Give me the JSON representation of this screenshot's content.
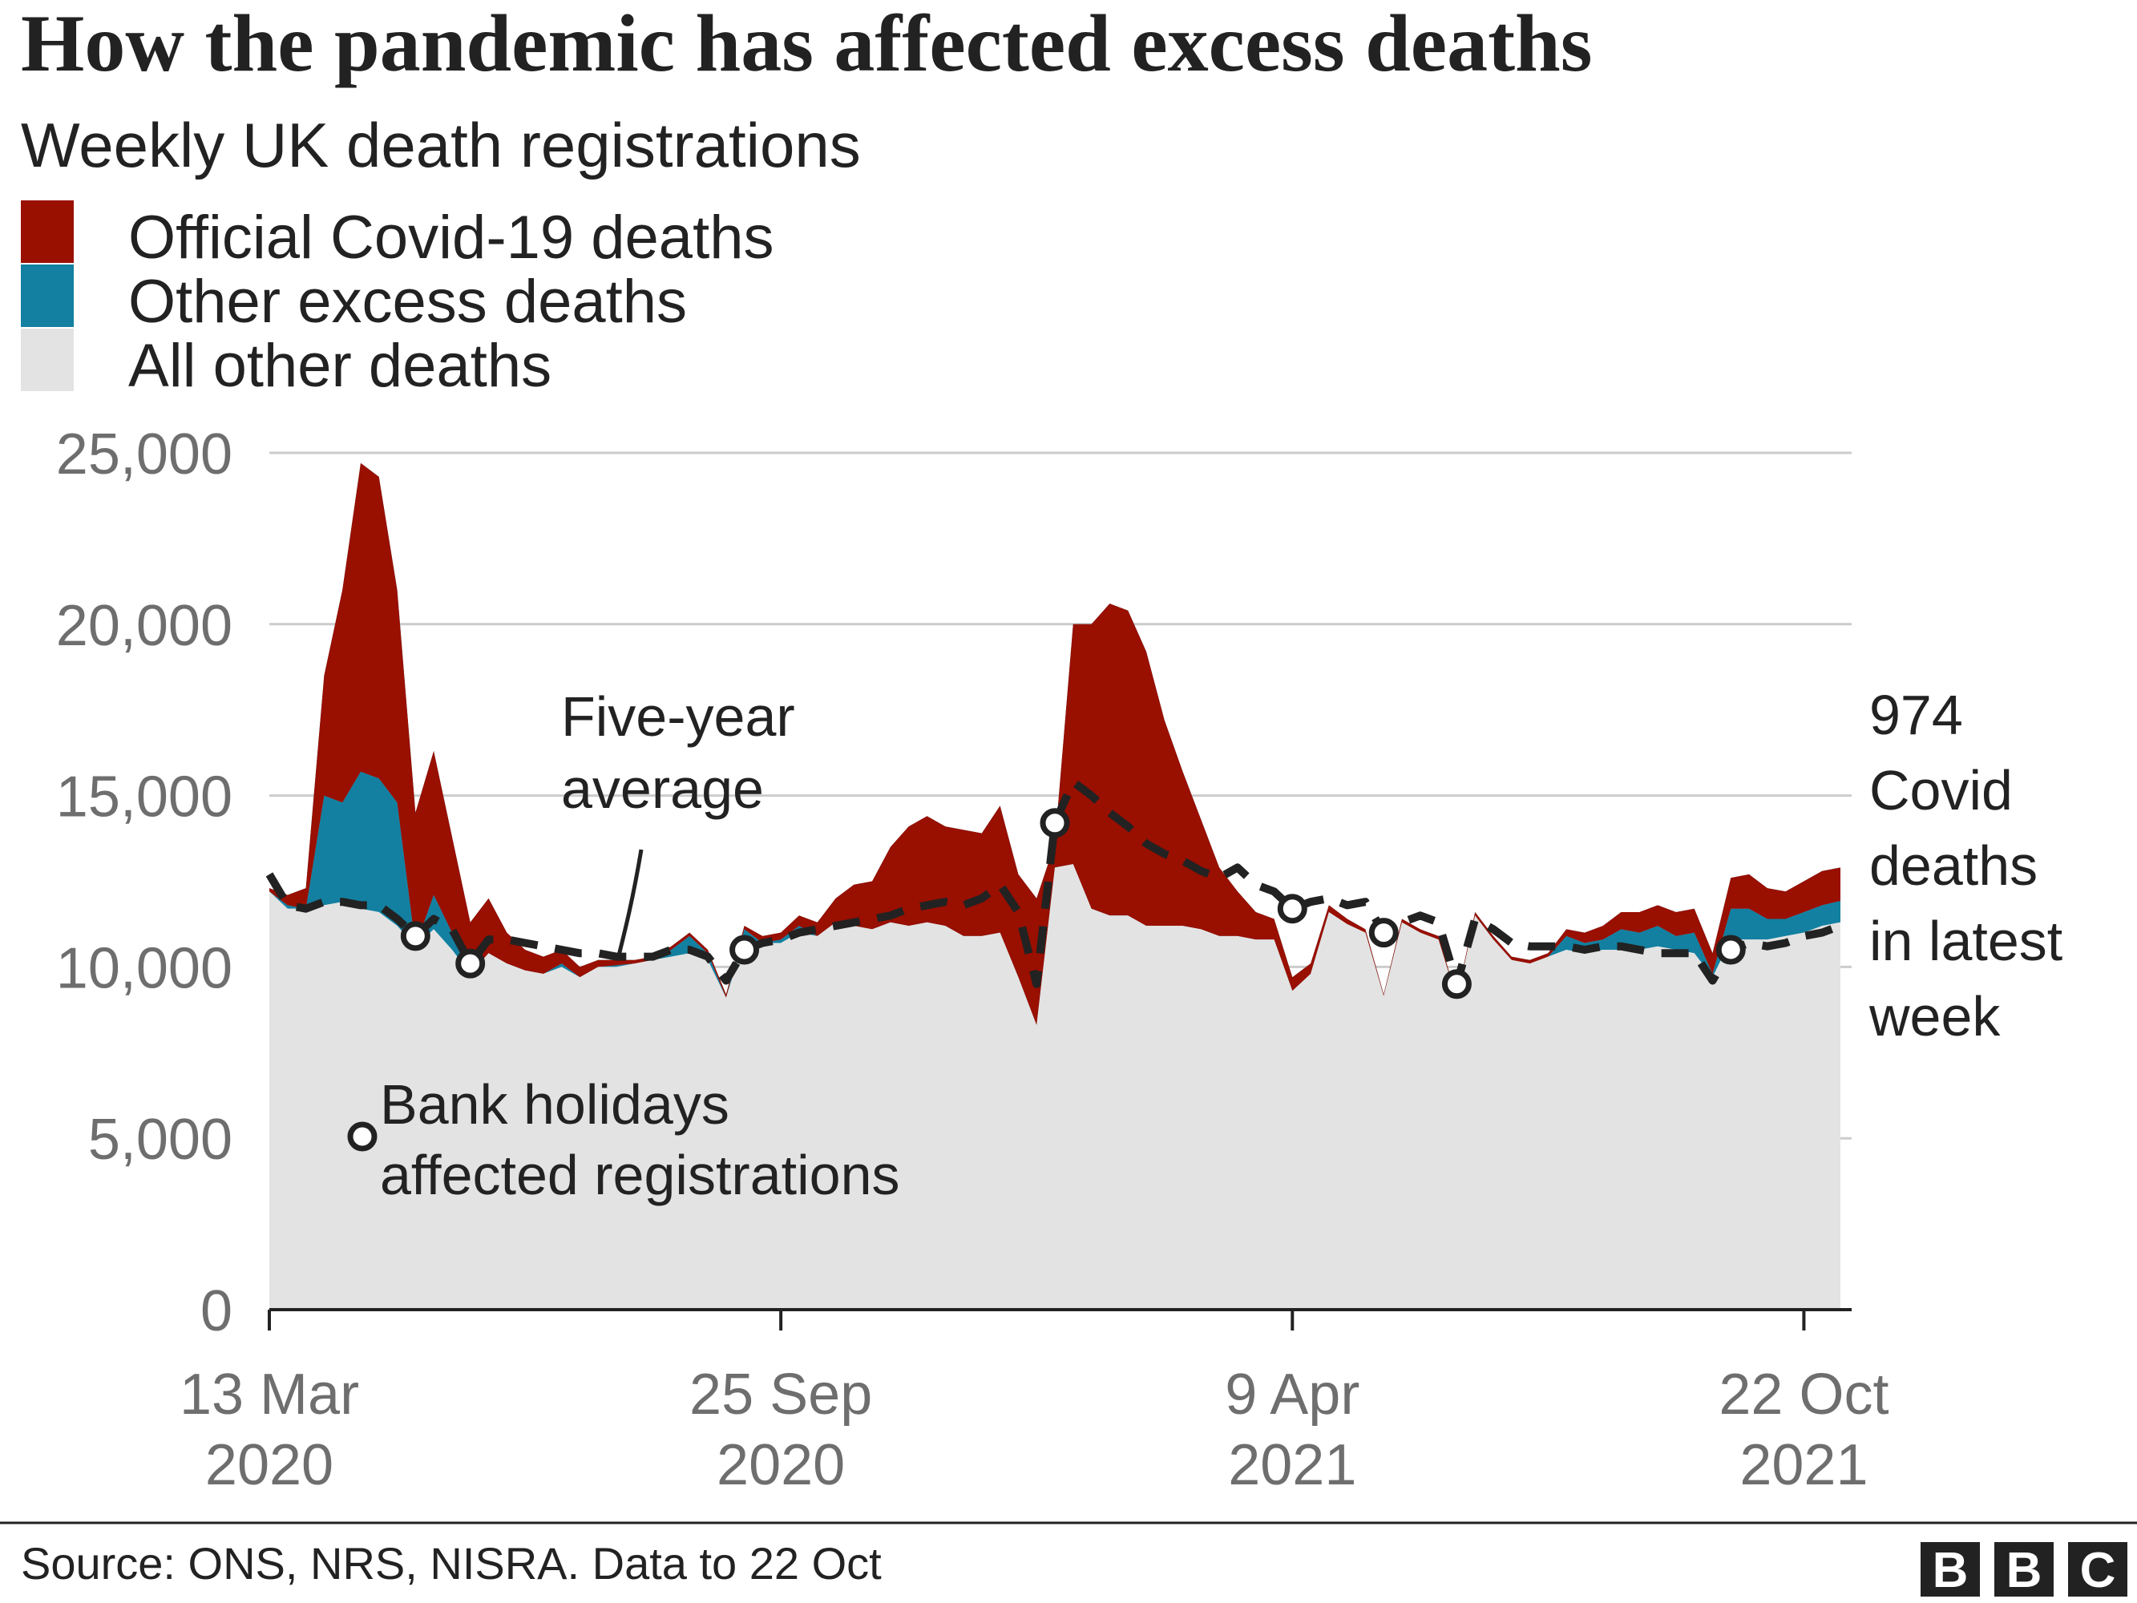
{
  "title": "How the pandemic has affected excess deaths",
  "subtitle": "Weekly UK death registrations",
  "legend": [
    {
      "label": "Official Covid-19 deaths",
      "color": "#990f00"
    },
    {
      "label": "Other excess deaths",
      "color": "#1380a1"
    },
    {
      "label": "All other deaths",
      "color": "#e3e3e3"
    }
  ],
  "annotations": {
    "five_year_line1": "Five-year",
    "five_year_line2": "average",
    "bank_line1": "Bank holidays",
    "bank_line2": "affected registrations",
    "latest_line1": "974",
    "latest_line2": "Covid",
    "latest_line3": "deaths",
    "latest_line4": "in latest",
    "latest_line5": "week"
  },
  "source": "Source: ONS, NRS, NISRA. Data to 22 Oct",
  "logo_letters": [
    "B",
    "B",
    "C"
  ],
  "chart_data": {
    "type": "area",
    "stacked": true,
    "ylim": [
      0,
      25000
    ],
    "y_ticks": [
      "0",
      "5,000",
      "10,000",
      "15,000",
      "20,000",
      "25,000"
    ],
    "y_tick_values": [
      0,
      5000,
      10000,
      15000,
      20000,
      25000
    ],
    "x_ticks": [
      {
        "line1": "13 Mar",
        "line2": "2020",
        "week": 0
      },
      {
        "line1": "25 Sep",
        "line2": "2020",
        "week": 28
      },
      {
        "line1": "9 Apr",
        "line2": "2021",
        "week": 56
      },
      {
        "line1": "22 Oct",
        "line2": "2021",
        "week": 84
      }
    ],
    "grid": true,
    "legend_position": "top-left",
    "series": [
      {
        "name": "Official Covid-19 deaths",
        "color": "#990f00"
      },
      {
        "name": "Other excess deaths",
        "color": "#1380a1"
      },
      {
        "name": "All other deaths",
        "color": "#e3e3e3"
      },
      {
        "name": "Five-year average",
        "style": "dashed",
        "color": "#222222"
      }
    ],
    "weeks": [
      {
        "total": 12300,
        "covid": 100,
        "avg": 12700,
        "other": 12200
      },
      {
        "total": 12100,
        "covid": 300,
        "avg": 11800,
        "other": 11700
      },
      {
        "total": 12300,
        "covid": 600,
        "avg": 11700,
        "other": 11700
      },
      {
        "total": 18500,
        "covid": 3500,
        "avg": 11900,
        "other": 11800
      },
      {
        "total": 21000,
        "covid": 6200,
        "avg": 11900,
        "other": 11900
      },
      {
        "total": 24700,
        "covid": 9000,
        "avg": 11800,
        "other": 11700
      },
      {
        "total": 24300,
        "covid": 8800,
        "avg": 11800,
        "other": 11600
      },
      {
        "total": 21000,
        "covid": 6200,
        "avg": 11400,
        "other": 11200
      },
      {
        "total": 14500,
        "covid": 3900,
        "avg": 10900,
        "other": 10600
      },
      {
        "total": 16300,
        "covid": 4200,
        "avg": 11400,
        "other": 11100
      },
      {
        "total": 13800,
        "covid": 2800,
        "avg": 11100,
        "other": 10500
      },
      {
        "total": 11300,
        "covid": 1500,
        "avg": 10100,
        "other": 9800
      },
      {
        "total": 12000,
        "covid": 1600,
        "avg": 10800,
        "other": 10400
      },
      {
        "total": 11000,
        "covid": 900,
        "avg": 10800,
        "other": 10100
      },
      {
        "total": 10500,
        "covid": 600,
        "avg": 10700,
        "other": 9900
      },
      {
        "total": 10300,
        "covid": 500,
        "avg": 10600,
        "other": 9800
      },
      {
        "total": 10500,
        "covid": 400,
        "avg": 10500,
        "other": 10000
      },
      {
        "total": 10000,
        "covid": 300,
        "avg": 10400,
        "other": 9700
      },
      {
        "total": 10200,
        "covid": 200,
        "avg": 10400,
        "other": 10000
      },
      {
        "total": 10200,
        "covid": 150,
        "avg": 10300,
        "other": 10000
      },
      {
        "total": 10200,
        "covid": 100,
        "avg": 10300,
        "other": 10100
      },
      {
        "total": 10300,
        "covid": 100,
        "avg": 10300,
        "other": 10200
      },
      {
        "total": 10600,
        "covid": 100,
        "avg": 10500,
        "other": 10300
      },
      {
        "total": 11000,
        "covid": 100,
        "avg": 10500,
        "other": 10400
      },
      {
        "total": 10500,
        "covid": 100,
        "avg": 10300,
        "other": 10200
      },
      {
        "total": 9200,
        "covid": 100,
        "avg": 9600,
        "other": 9100
      },
      {
        "total": 11200,
        "covid": 100,
        "avg": 10500,
        "other": 10800
      },
      {
        "total": 10900,
        "covid": 200,
        "avg": 10700,
        "other": 10700
      },
      {
        "total": 11000,
        "covid": 200,
        "avg": 10800,
        "other": 10700
      },
      {
        "total": 11500,
        "covid": 300,
        "avg": 11000,
        "other": 11000
      },
      {
        "total": 11300,
        "covid": 400,
        "avg": 11100,
        "other": 10900
      },
      {
        "total": 12000,
        "covid": 700,
        "avg": 11200,
        "other": 11300
      },
      {
        "total": 12400,
        "covid": 1200,
        "avg": 11300,
        "other": 11200
      },
      {
        "total": 12500,
        "covid": 1400,
        "avg": 11400,
        "other": 11100
      },
      {
        "total": 13500,
        "covid": 2200,
        "avg": 11500,
        "other": 11300
      },
      {
        "total": 14100,
        "covid": 2900,
        "avg": 11700,
        "other": 11200
      },
      {
        "total": 14400,
        "covid": 3100,
        "avg": 11800,
        "other": 11300
      },
      {
        "total": 14100,
        "covid": 2900,
        "avg": 11900,
        "other": 11200
      },
      {
        "total": 14000,
        "covid": 3100,
        "avg": 11800,
        "other": 10900
      },
      {
        "total": 13900,
        "covid": 3000,
        "avg": 12000,
        "other": 10900
      },
      {
        "total": 14700,
        "covid": 3700,
        "avg": 12400,
        "other": 11000
      },
      {
        "total": 12700,
        "covid": 3000,
        "avg": 11600,
        "other": 9700
      },
      {
        "total": 12000,
        "covid": 3700,
        "avg": 9500,
        "other": 8300
      },
      {
        "total": 13600,
        "covid": 700,
        "avg": 14200,
        "other": 12900
      },
      {
        "total": 20000,
        "covid": 7000,
        "avg": 15400,
        "other": 13000
      },
      {
        "total": 20000,
        "covid": 8300,
        "avg": 15000,
        "other": 11700
      },
      {
        "total": 20600,
        "covid": 9100,
        "avg": 14500,
        "other": 11500
      },
      {
        "total": 20400,
        "covid": 8900,
        "avg": 14100,
        "other": 11500
      },
      {
        "total": 19200,
        "covid": 8000,
        "avg": 13600,
        "other": 11200
      },
      {
        "total": 17200,
        "covid": 6000,
        "avg": 13300,
        "other": 11200
      },
      {
        "total": 15700,
        "covid": 4500,
        "avg": 13100,
        "other": 11200
      },
      {
        "total": 14300,
        "covid": 3200,
        "avg": 12800,
        "other": 11100
      },
      {
        "total": 12900,
        "covid": 2000,
        "avg": 12600,
        "other": 10900
      },
      {
        "total": 12200,
        "covid": 1300,
        "avg": 12900,
        "other": 10900
      },
      {
        "total": 11600,
        "covid": 800,
        "avg": 12400,
        "other": 10800
      },
      {
        "total": 11400,
        "covid": 600,
        "avg": 12200,
        "other": 10800
      },
      {
        "total": 9700,
        "covid": 400,
        "avg": 11700,
        "other": 9300
      },
      {
        "total": 10100,
        "covid": 300,
        "avg": 11900,
        "other": 9800
      },
      {
        "total": 11800,
        "covid": 200,
        "avg": 12000,
        "other": 11600
      },
      {
        "total": 11400,
        "covid": 150,
        "avg": 11800,
        "other": 11250
      },
      {
        "total": 11100,
        "covid": 100,
        "avg": 11900,
        "other": 11000
      },
      {
        "total": 9200,
        "covid": 50,
        "avg": 11000,
        "other": 9150
      },
      {
        "total": 11400,
        "covid": 100,
        "avg": 11300,
        "other": 11300
      },
      {
        "total": 11100,
        "covid": 100,
        "avg": 11500,
        "other": 11000
      },
      {
        "total": 10900,
        "covid": 100,
        "avg": 11300,
        "other": 10800
      },
      {
        "total": 9100,
        "covid": 50,
        "avg": 9500,
        "other": 9050
      },
      {
        "total": 11600,
        "covid": 100,
        "avg": 11400,
        "other": 11500
      },
      {
        "total": 10900,
        "covid": 100,
        "avg": 11100,
        "other": 10800
      },
      {
        "total": 10300,
        "covid": 100,
        "avg": 10700,
        "other": 10200
      },
      {
        "total": 10200,
        "covid": 100,
        "avg": 10600,
        "other": 10100
      },
      {
        "total": 10400,
        "covid": 100,
        "avg": 10600,
        "other": 10300
      },
      {
        "total": 11100,
        "covid": 200,
        "avg": 10600,
        "other": 10500
      },
      {
        "total": 11000,
        "covid": 300,
        "avg": 10500,
        "other": 10400
      },
      {
        "total": 11200,
        "covid": 400,
        "avg": 10600,
        "other": 10500
      },
      {
        "total": 11600,
        "covid": 500,
        "avg": 10600,
        "other": 10500
      },
      {
        "total": 11600,
        "covid": 600,
        "avg": 10500,
        "other": 10500
      },
      {
        "total": 11800,
        "covid": 600,
        "avg": 10400,
        "other": 10600
      },
      {
        "total": 11600,
        "covid": 700,
        "avg": 10400,
        "other": 10500
      },
      {
        "total": 11700,
        "covid": 700,
        "avg": 10400,
        "other": 10400
      },
      {
        "total": 10400,
        "covid": 600,
        "avg": 9600,
        "other": 9700
      },
      {
        "total": 12600,
        "covid": 900,
        "avg": 10500,
        "other": 10800
      },
      {
        "total": 12700,
        "covid": 1000,
        "avg": 10700,
        "other": 10800
      },
      {
        "total": 12300,
        "covid": 900,
        "avg": 10600,
        "other": 10800
      },
      {
        "total": 12200,
        "covid": 800,
        "avg": 10700,
        "other": 10900
      },
      {
        "total": 12500,
        "covid": 900,
        "avg": 10900,
        "other": 11000
      },
      {
        "total": 12800,
        "covid": 1000,
        "avg": 11000,
        "other": 11200
      },
      {
        "total": 12900,
        "covid": 974,
        "avg": 11200,
        "other": 11300
      }
    ],
    "bank_holiday_weeks": [
      8,
      11,
      26,
      43,
      56,
      61,
      65,
      80
    ]
  }
}
